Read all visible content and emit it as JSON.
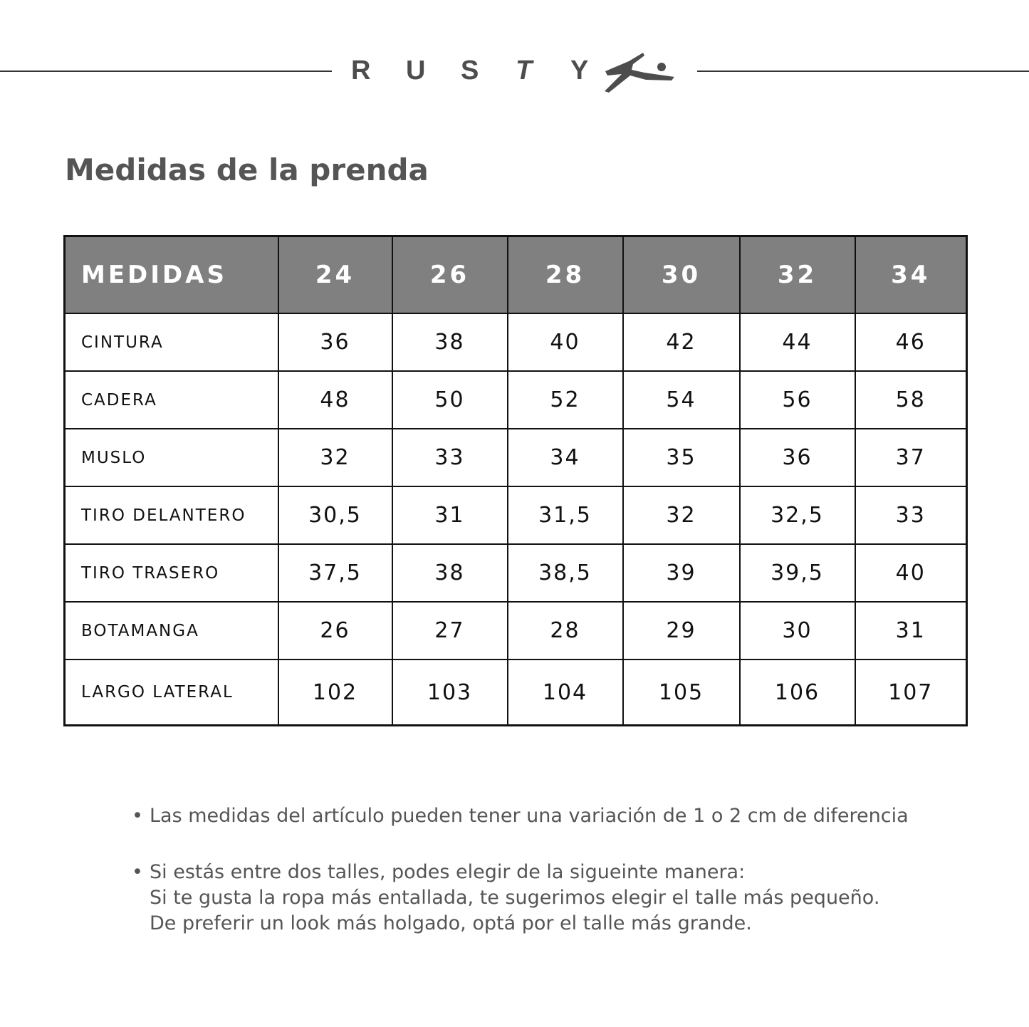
{
  "brand": {
    "letters": [
      "R",
      "U",
      "S",
      "T",
      "Y"
    ],
    "logo_icon": "rusty-r-logo",
    "color": "#4d4d4d"
  },
  "title": "Medidas de la prenda",
  "table": {
    "header_color": "#808080",
    "headers": [
      "MEDIDAS",
      "24",
      "26",
      "28",
      "30",
      "32",
      "34"
    ],
    "rows": [
      {
        "label": "CINTURA",
        "values": [
          "36",
          "38",
          "40",
          "42",
          "44",
          "46"
        ]
      },
      {
        "label": "CADERA",
        "values": [
          "48",
          "50",
          "52",
          "54",
          "56",
          "58"
        ]
      },
      {
        "label": "MUSLO",
        "values": [
          "32",
          "33",
          "34",
          "35",
          "36",
          "37"
        ]
      },
      {
        "label": "TIRO DELANTERO",
        "values": [
          "30,5",
          "31",
          "31,5",
          "32",
          "32,5",
          "33"
        ]
      },
      {
        "label": "TIRO TRASERO",
        "values": [
          "37,5",
          "38",
          "38,5",
          "39",
          "39,5",
          "40"
        ]
      },
      {
        "label": "BOTAMANGA",
        "values": [
          "26",
          "27",
          "28",
          "29",
          "30",
          "31"
        ]
      },
      {
        "label": "LARGO LATERAL",
        "values": [
          "102",
          "103",
          "104",
          "105",
          "106",
          "107"
        ]
      }
    ]
  },
  "notes": [
    {
      "bullet": "•",
      "lines": [
        "Las medidas del artículo pueden tener una variación de 1 o 2 cm de diferencia"
      ]
    },
    {
      "bullet": "•",
      "lines": [
        "Si estás entre dos talles, podes elegir de la sigueinte manera:",
        "Si te gusta la ropa más entallada, te sugerimos elegir el talle más pequeño.",
        "De preferir un look más holgado, optá por el talle más grande."
      ]
    }
  ]
}
